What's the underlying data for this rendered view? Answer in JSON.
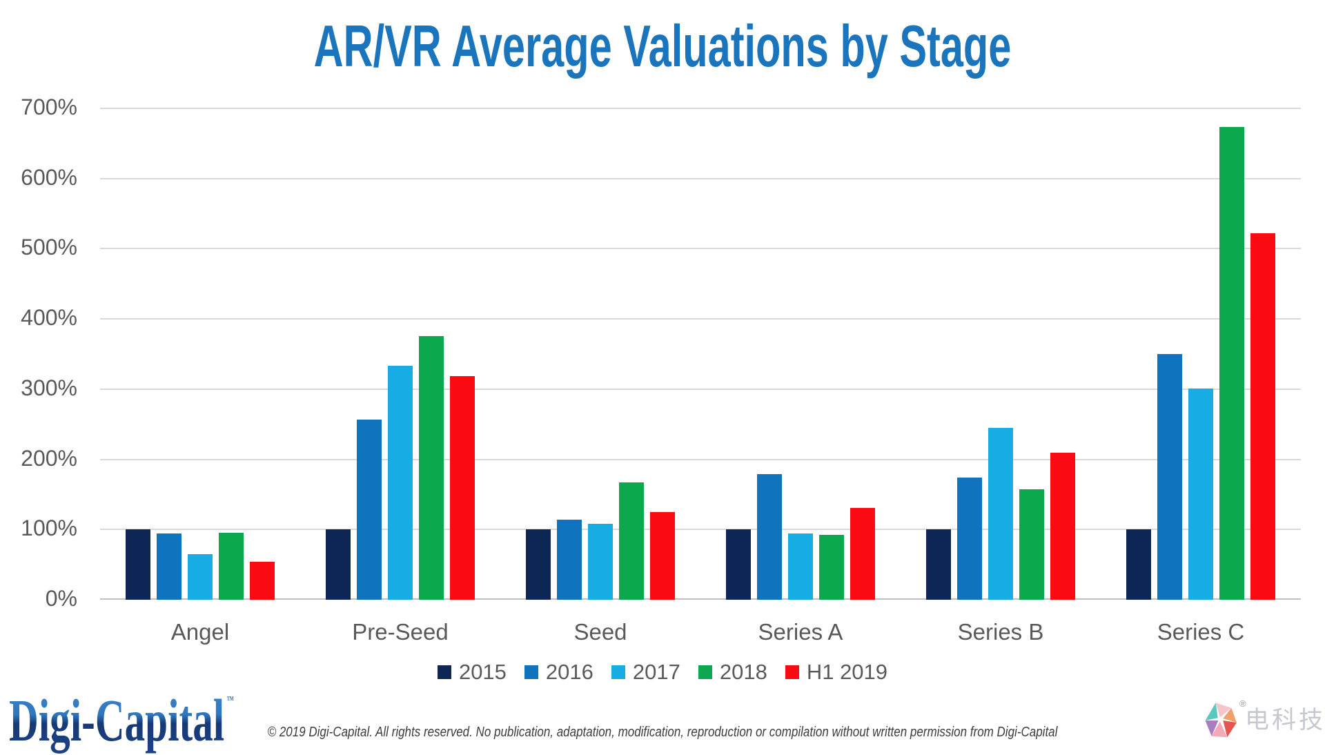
{
  "title": "AR/VR Average Valuations by Stage",
  "chart_data": {
    "type": "bar",
    "title": "AR/VR Average Valuations by Stage",
    "categories": [
      "Angel",
      "Pre-Seed",
      "Seed",
      "Series A",
      "Series B",
      "Series C"
    ],
    "series": [
      {
        "name": "2015",
        "color": "#0D2653",
        "values": [
          100,
          100,
          100,
          100,
          100,
          100
        ]
      },
      {
        "name": "2016",
        "color": "#0F74BD",
        "values": [
          94,
          257,
          114,
          179,
          174,
          350
        ]
      },
      {
        "name": "2017",
        "color": "#18ACE4",
        "values": [
          65,
          333,
          108,
          94,
          245,
          301
        ]
      },
      {
        "name": "2018",
        "color": "#0CA84D",
        "values": [
          95,
          376,
          167,
          92,
          157,
          673
        ]
      },
      {
        "name": "H1 2019",
        "color": "#FA0B14",
        "values": [
          54,
          319,
          125,
          131,
          209,
          522
        ]
      }
    ],
    "yticks": [
      "0%",
      "100%",
      "200%",
      "300%",
      "400%",
      "500%",
      "600%",
      "700%"
    ],
    "ylim": [
      0,
      700
    ],
    "grid": true,
    "legend_position": "bottom"
  },
  "colors": {
    "title": "#1B75BC",
    "axis_text": "#595959",
    "gridline": "#D9D9D9",
    "baseline": "#BFBFBF"
  },
  "footer": {
    "brand": "Digi-Capital",
    "brand_tm": "™",
    "copyright": "© 2019 Digi-Capital. All rights reserved. No publication, adaptation, modification, reproduction or compilation without written permission from Digi-Capital",
    "right_logo_text": "电科技",
    "right_logo_reg": "®"
  }
}
